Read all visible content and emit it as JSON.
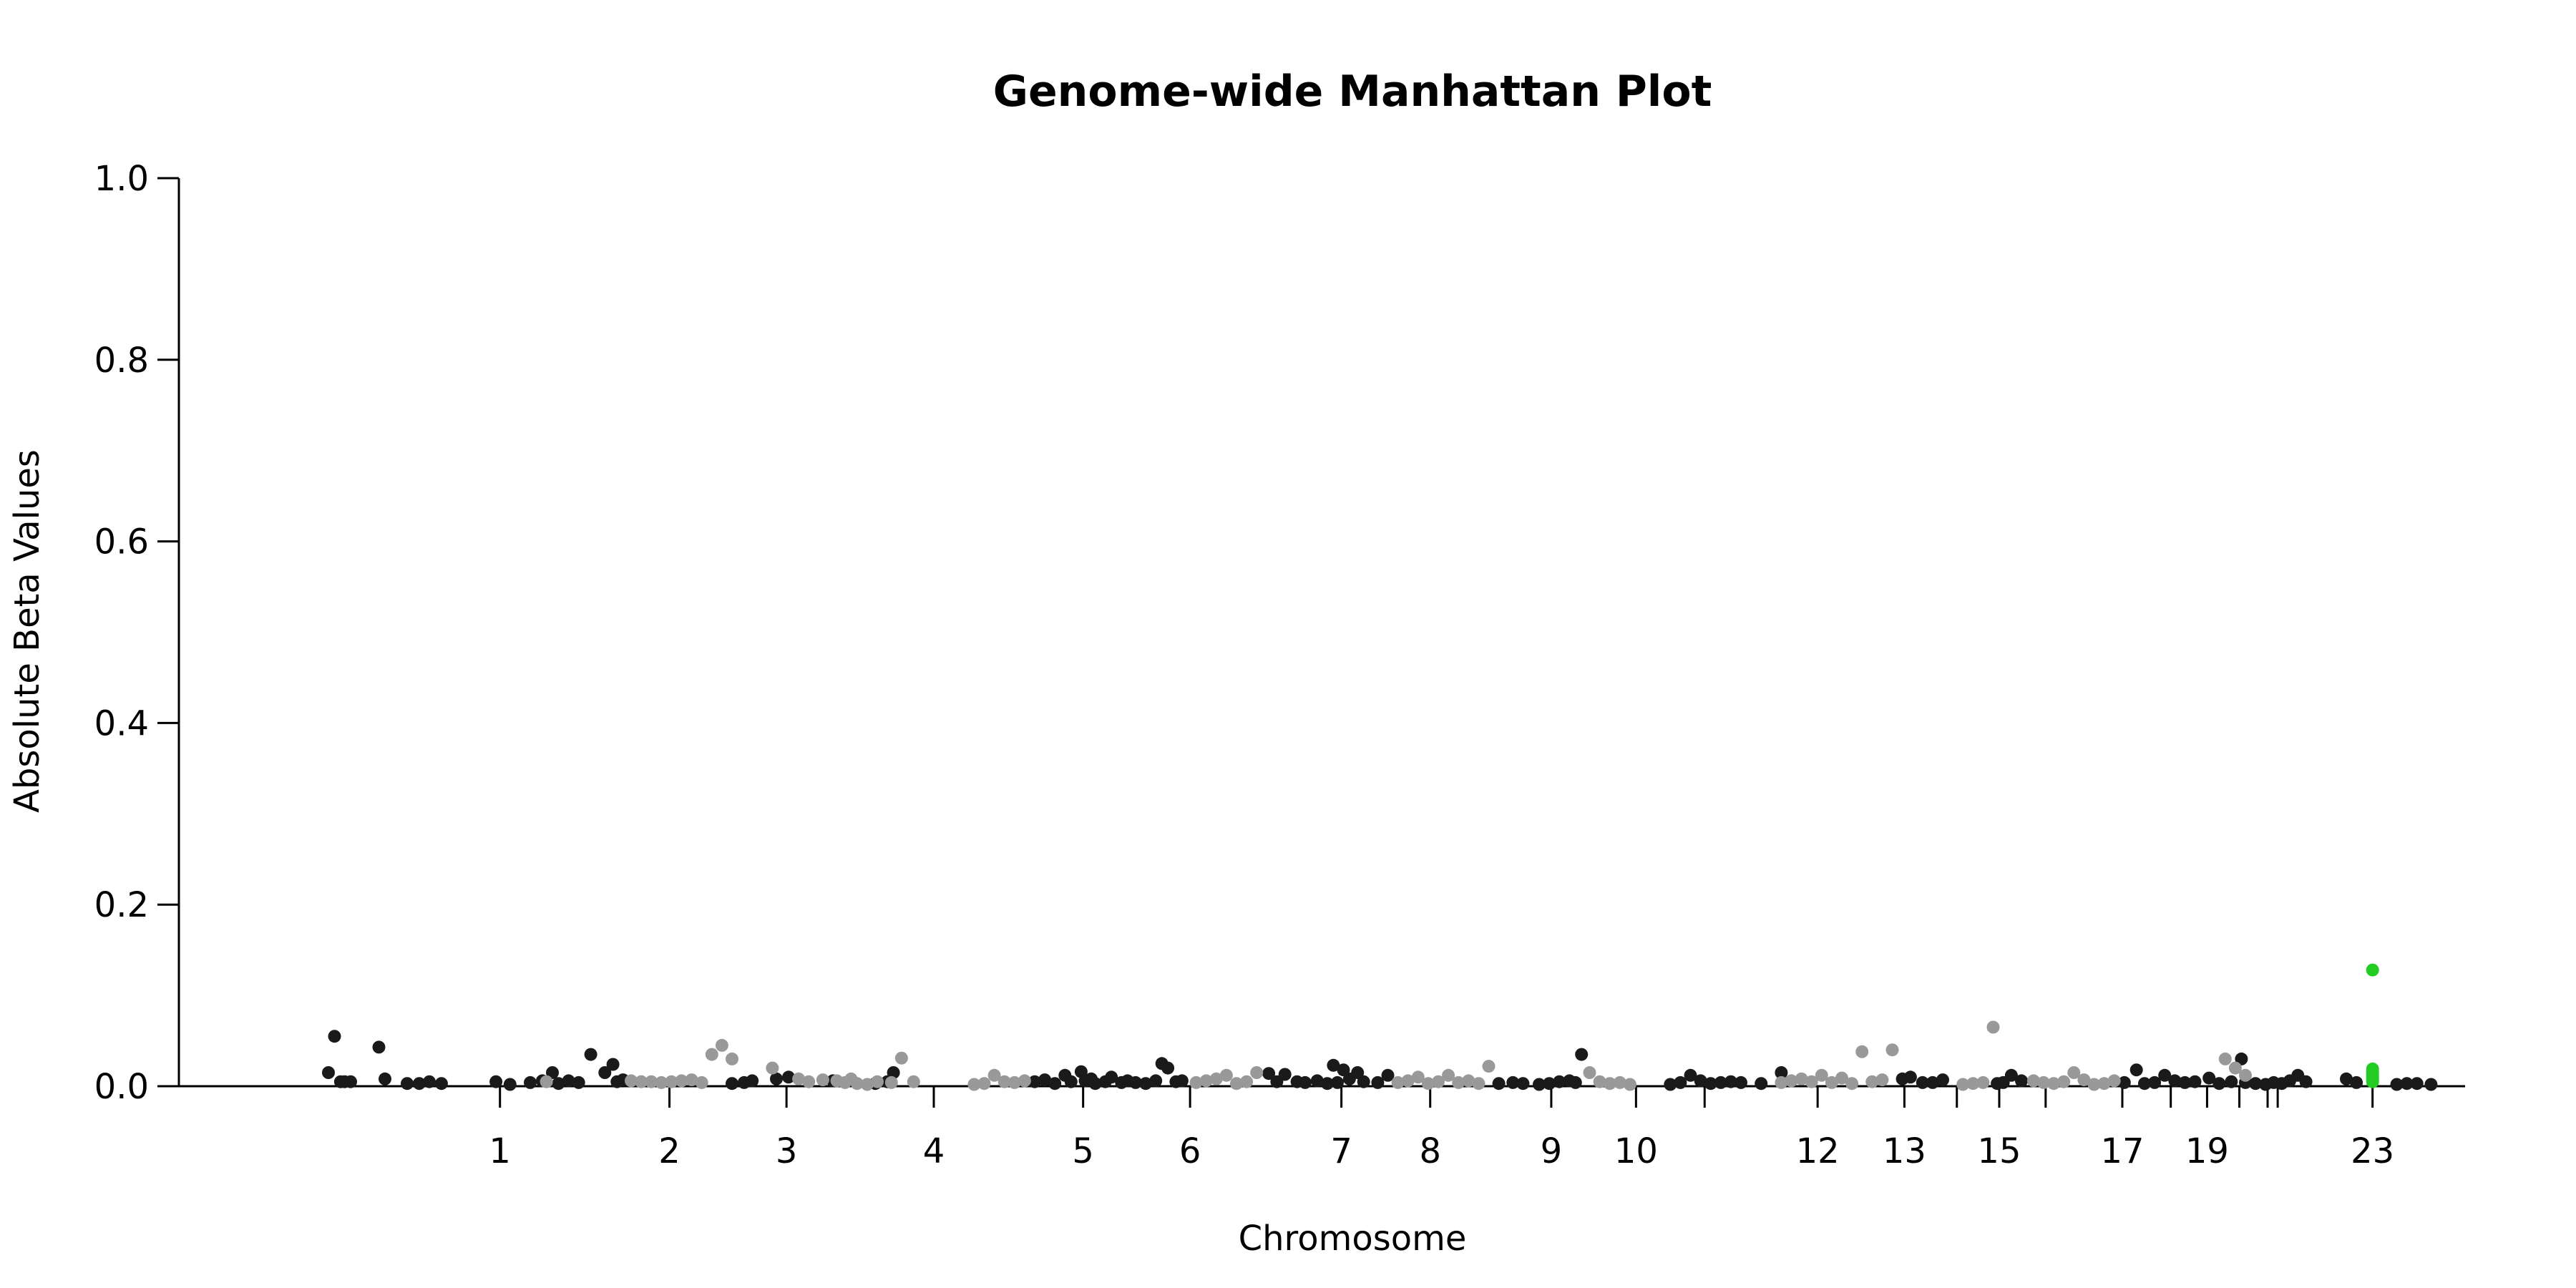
{
  "chart_data": {
    "type": "scatter",
    "title": "Genome-wide Manhattan Plot",
    "xlabel": "Chromosome",
    "ylabel": "Absolute Beta Values",
    "ylim": [
      0,
      1.0
    ],
    "xlim": [
      -0.05,
      1.05
    ],
    "yticks": [
      "0.0",
      "0.2",
      "0.4",
      "0.6",
      "0.8",
      "1.0"
    ],
    "ytick_values": [
      0,
      0.2,
      0.4,
      0.6,
      0.8,
      1.0
    ],
    "grid": false,
    "legend": "none",
    "colors": {
      "dark": "#1a1a1a",
      "light": "#999999",
      "highlight": "#22cc22"
    },
    "xticks": [
      {
        "label": "1",
        "pos": 0.085
      },
      {
        "label": "2",
        "pos": 0.169
      },
      {
        "label": "3",
        "pos": 0.227
      },
      {
        "label": "4",
        "pos": 0.3
      },
      {
        "label": "5",
        "pos": 0.374
      },
      {
        "label": "6",
        "pos": 0.427
      },
      {
        "label": "7",
        "pos": 0.502
      },
      {
        "label": "8",
        "pos": 0.546
      },
      {
        "label": "9",
        "pos": 0.606
      },
      {
        "label": "10",
        "pos": 0.648
      },
      {
        "label": "",
        "pos": 0.682
      },
      {
        "label": "12",
        "pos": 0.738
      },
      {
        "label": "13",
        "pos": 0.781
      },
      {
        "label": "",
        "pos": 0.807
      },
      {
        "label": "15",
        "pos": 0.828
      },
      {
        "label": "",
        "pos": 0.851
      },
      {
        "label": "17",
        "pos": 0.889
      },
      {
        "label": "",
        "pos": 0.913
      },
      {
        "label": "19",
        "pos": 0.931
      },
      {
        "label": "",
        "pos": 0.947
      },
      {
        "label": "",
        "pos": 0.961
      },
      {
        "label": "",
        "pos": 0.966
      },
      {
        "label": "23",
        "pos": 1.013
      }
    ],
    "series": [
      {
        "color": "dark",
        "x": [
          0.0,
          0.003,
          0.006,
          0.008,
          0.011,
          0.025,
          0.028,
          0.039,
          0.045,
          0.05,
          0.056,
          0.083,
          0.09,
          0.1,
          0.106,
          0.111,
          0.114,
          0.119,
          0.124,
          0.13,
          0.137,
          0.141,
          0.143,
          0.146,
          0.2,
          0.206,
          0.21,
          0.222,
          0.228,
          0.25,
          0.271,
          0.277,
          0.28,
          0.35,
          0.355,
          0.36,
          0.365,
          0.368,
          0.373,
          0.375,
          0.378,
          0.38,
          0.385,
          0.388,
          0.393,
          0.396,
          0.4,
          0.405,
          0.41,
          0.413,
          0.416,
          0.42,
          0.423,
          0.466,
          0.47,
          0.474,
          0.48,
          0.484,
          0.49,
          0.495,
          0.498,
          0.5,
          0.503,
          0.506,
          0.51,
          0.513,
          0.52,
          0.525,
          0.58,
          0.587,
          0.592,
          0.6,
          0.605,
          0.61,
          0.615,
          0.618,
          0.621,
          0.665,
          0.67,
          0.675,
          0.68,
          0.685,
          0.69,
          0.695,
          0.7,
          0.71,
          0.72,
          0.78,
          0.784,
          0.79,
          0.795,
          0.8,
          0.827,
          0.83,
          0.834,
          0.839,
          0.89,
          0.896,
          0.9,
          0.905,
          0.91,
          0.915,
          0.92,
          0.925,
          0.932,
          0.937,
          0.943,
          0.948,
          0.95,
          0.955,
          0.96,
          0.964,
          0.968,
          0.972,
          0.976,
          0.98,
          1.0,
          1.005,
          1.025,
          1.03,
          1.035,
          1.042
        ],
        "y": [
          0.015,
          0.055,
          0.005,
          0.005,
          0.005,
          0.043,
          0.008,
          0.003,
          0.003,
          0.005,
          0.003,
          0.005,
          0.002,
          0.004,
          0.006,
          0.015,
          0.003,
          0.006,
          0.004,
          0.035,
          0.015,
          0.024,
          0.005,
          0.007,
          0.003,
          0.004,
          0.006,
          0.008,
          0.01,
          0.006,
          0.003,
          0.005,
          0.015,
          0.005,
          0.007,
          0.003,
          0.012,
          0.005,
          0.016,
          0.006,
          0.008,
          0.003,
          0.005,
          0.01,
          0.004,
          0.006,
          0.004,
          0.003,
          0.006,
          0.025,
          0.02,
          0.005,
          0.006,
          0.014,
          0.005,
          0.013,
          0.005,
          0.004,
          0.006,
          0.003,
          0.023,
          0.004,
          0.018,
          0.008,
          0.015,
          0.005,
          0.004,
          0.012,
          0.003,
          0.004,
          0.003,
          0.002,
          0.003,
          0.005,
          0.006,
          0.004,
          0.035,
          0.002,
          0.004,
          0.012,
          0.006,
          0.003,
          0.004,
          0.005,
          0.004,
          0.003,
          0.015,
          0.008,
          0.01,
          0.004,
          0.004,
          0.007,
          0.003,
          0.004,
          0.012,
          0.006,
          0.004,
          0.018,
          0.003,
          0.004,
          0.012,
          0.006,
          0.004,
          0.005,
          0.009,
          0.003,
          0.005,
          0.03,
          0.004,
          0.003,
          0.002,
          0.004,
          0.003,
          0.006,
          0.012,
          0.005,
          0.008,
          0.004,
          0.002,
          0.003,
          0.003,
          0.002
        ],
        "yjitter_note": ""
      },
      {
        "color": "light",
        "x": [
          0.108,
          0.15,
          0.155,
          0.16,
          0.165,
          0.17,
          0.175,
          0.18,
          0.185,
          0.19,
          0.195,
          0.2,
          0.22,
          0.233,
          0.238,
          0.245,
          0.252,
          0.256,
          0.259,
          0.262,
          0.267,
          0.272,
          0.279,
          0.284,
          0.29,
          0.32,
          0.325,
          0.33,
          0.335,
          0.34,
          0.345,
          0.43,
          0.435,
          0.44,
          0.445,
          0.45,
          0.455,
          0.46,
          0.53,
          0.535,
          0.54,
          0.545,
          0.55,
          0.555,
          0.56,
          0.565,
          0.57,
          0.575,
          0.625,
          0.63,
          0.635,
          0.64,
          0.645,
          0.72,
          0.725,
          0.73,
          0.735,
          0.74,
          0.745,
          0.75,
          0.755,
          0.76,
          0.765,
          0.77,
          0.775,
          0.81,
          0.815,
          0.82,
          0.825,
          0.845,
          0.85,
          0.855,
          0.86,
          0.865,
          0.87,
          0.875,
          0.88,
          0.885,
          0.94,
          0.945,
          0.95
        ],
        "y": [
          0.005,
          0.006,
          0.005,
          0.005,
          0.004,
          0.005,
          0.006,
          0.007,
          0.004,
          0.035,
          0.045,
          0.03,
          0.02,
          0.008,
          0.005,
          0.007,
          0.006,
          0.004,
          0.008,
          0.003,
          0.002,
          0.005,
          0.004,
          0.031,
          0.005,
          0.002,
          0.003,
          0.012,
          0.005,
          0.004,
          0.006,
          0.004,
          0.006,
          0.008,
          0.012,
          0.003,
          0.005,
          0.015,
          0.004,
          0.006,
          0.01,
          0.003,
          0.005,
          0.012,
          0.004,
          0.006,
          0.003,
          0.022,
          0.015,
          0.005,
          0.003,
          0.004,
          0.002,
          0.004,
          0.006,
          0.008,
          0.005,
          0.012,
          0.004,
          0.009,
          0.003,
          0.038,
          0.005,
          0.007,
          0.04,
          0.002,
          0.003,
          0.004,
          0.065,
          0.006,
          0.004,
          0.003,
          0.005,
          0.015,
          0.007,
          0.002,
          0.003,
          0.006,
          0.03,
          0.02,
          0.012
        ],
        "yjitter_note": ""
      },
      {
        "color": "highlight",
        "x": [
          1.013,
          1.013,
          1.013,
          1.013,
          1.013,
          1.013,
          1.013,
          1.013
        ],
        "y": [
          0.128,
          0.019,
          0.016,
          0.013,
          0.011,
          0.009,
          0.007,
          0.005
        ]
      }
    ]
  }
}
